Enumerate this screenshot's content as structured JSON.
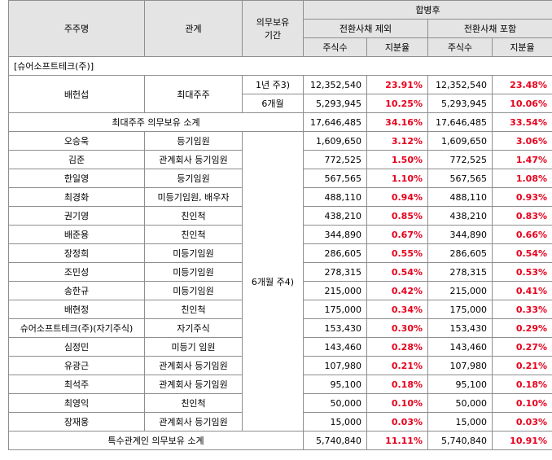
{
  "header": {
    "shareholder": "주주명",
    "relation": "관계",
    "lockup_period_line1": "의무보유",
    "lockup_period_line2": "기간",
    "after_merger": "합병후",
    "excl_cb": "전환사채 제외",
    "incl_cb": "전환사채 포함",
    "shares": "주식수",
    "ratio": "지분율"
  },
  "company": "[슈어소프트테크(주)]",
  "largest": {
    "name": "배헌섭",
    "relation": "최대주주",
    "rows": [
      {
        "period": "1년 주3)",
        "shares_excl": "12,352,540",
        "ratio_excl": "23.91%",
        "shares_incl": "12,352,540",
        "ratio_incl": "23.48%"
      },
      {
        "period": "6개월",
        "shares_excl": "5,293,945",
        "ratio_excl": "10.25%",
        "shares_incl": "5,293,945",
        "ratio_incl": "10.06%"
      }
    ]
  },
  "largest_subtotal": {
    "label": "최대주주 의무보유 소계",
    "shares_excl": "17,646,485",
    "ratio_excl": "34.16%",
    "shares_incl": "17,646,485",
    "ratio_incl": "33.54%"
  },
  "special_period": "6개월 주4)",
  "special": [
    {
      "name": "오승욱",
      "relation": "등기임원",
      "shares_excl": "1,609,650",
      "ratio_excl": "3.12%",
      "shares_incl": "1,609,650",
      "ratio_incl": "3.06%"
    },
    {
      "name": "김준",
      "relation": "관계회사 등기임원",
      "shares_excl": "772,525",
      "ratio_excl": "1.50%",
      "shares_incl": "772,525",
      "ratio_incl": "1.47%"
    },
    {
      "name": "한일영",
      "relation": "등기임원",
      "shares_excl": "567,565",
      "ratio_excl": "1.10%",
      "shares_incl": "567,565",
      "ratio_incl": "1.08%"
    },
    {
      "name": "최경화",
      "relation": "미등기임원, 배우자",
      "shares_excl": "488,110",
      "ratio_excl": "0.94%",
      "shares_incl": "488,110",
      "ratio_incl": "0.93%"
    },
    {
      "name": "권기영",
      "relation": "친인척",
      "shares_excl": "438,210",
      "ratio_excl": "0.85%",
      "shares_incl": "438,210",
      "ratio_incl": "0.83%"
    },
    {
      "name": "배준용",
      "relation": "친인척",
      "shares_excl": "344,890",
      "ratio_excl": "0.67%",
      "shares_incl": "344,890",
      "ratio_incl": "0.66%"
    },
    {
      "name": "장정희",
      "relation": "미등기임원",
      "shares_excl": "286,605",
      "ratio_excl": "0.55%",
      "shares_incl": "286,605",
      "ratio_incl": "0.54%"
    },
    {
      "name": "조민성",
      "relation": "미등기임원",
      "shares_excl": "278,315",
      "ratio_excl": "0.54%",
      "shares_incl": "278,315",
      "ratio_incl": "0.53%"
    },
    {
      "name": "송한규",
      "relation": "미등기임원",
      "shares_excl": "215,000",
      "ratio_excl": "0.42%",
      "shares_incl": "215,000",
      "ratio_incl": "0.41%"
    },
    {
      "name": "배현정",
      "relation": "친인척",
      "shares_excl": "175,000",
      "ratio_excl": "0.34%",
      "shares_incl": "175,000",
      "ratio_incl": "0.33%"
    },
    {
      "name": "슈어소프트테크(주)(자기주식)",
      "relation": "자기주식",
      "shares_excl": "153,430",
      "ratio_excl": "0.30%",
      "shares_incl": "153,430",
      "ratio_incl": "0.29%"
    },
    {
      "name": "심정민",
      "relation": "미등기 임원",
      "shares_excl": "143,460",
      "ratio_excl": "0.28%",
      "shares_incl": "143,460",
      "ratio_incl": "0.27%"
    },
    {
      "name": "유광근",
      "relation": "관계회사 등기임원",
      "shares_excl": "107,980",
      "ratio_excl": "0.21%",
      "shares_incl": "107,980",
      "ratio_incl": "0.21%"
    },
    {
      "name": "최석주",
      "relation": "관계회사 등기임원",
      "shares_excl": "95,100",
      "ratio_excl": "0.18%",
      "shares_incl": "95,100",
      "ratio_incl": "0.18%"
    },
    {
      "name": "최영익",
      "relation": "친인척",
      "shares_excl": "50,000",
      "ratio_excl": "0.10%",
      "shares_incl": "50,000",
      "ratio_incl": "0.10%"
    },
    {
      "name": "장재웅",
      "relation": "관계회사 등기임원",
      "shares_excl": "15,000",
      "ratio_excl": "0.03%",
      "shares_incl": "15,000",
      "ratio_incl": "0.03%"
    }
  ],
  "special_subtotal": {
    "label": "특수관계인 의무보유 소계",
    "shares_excl": "5,740,840",
    "ratio_excl": "11.11%",
    "shares_incl": "5,740,840",
    "ratio_incl": "10.91%"
  }
}
